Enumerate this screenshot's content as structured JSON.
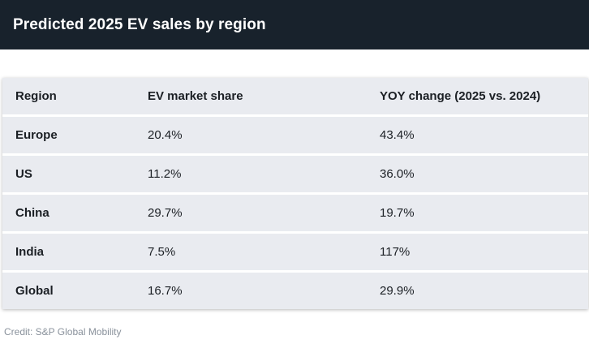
{
  "header": {
    "title": "Predicted 2025 EV sales by region"
  },
  "chart_data": {
    "type": "table",
    "title": "Predicted 2025 EV sales by region",
    "columns": [
      "Region",
      "EV market share",
      "YOY change (2025 vs. 2024)"
    ],
    "rows": [
      [
        "Europe",
        "20.4%",
        "43.4%"
      ],
      [
        "US",
        "11.2%",
        "36.0%"
      ],
      [
        "China",
        "29.7%",
        "19.7%"
      ],
      [
        "India",
        "7.5%",
        "117%"
      ],
      [
        "Global",
        "16.7%",
        "29.9%"
      ]
    ]
  },
  "footer": {
    "credit": "Credit: S&P Global Mobility"
  },
  "colors": {
    "header_bg": "#18222c",
    "row_bg": "#e9ebf0",
    "credit_text": "#8a929c"
  }
}
